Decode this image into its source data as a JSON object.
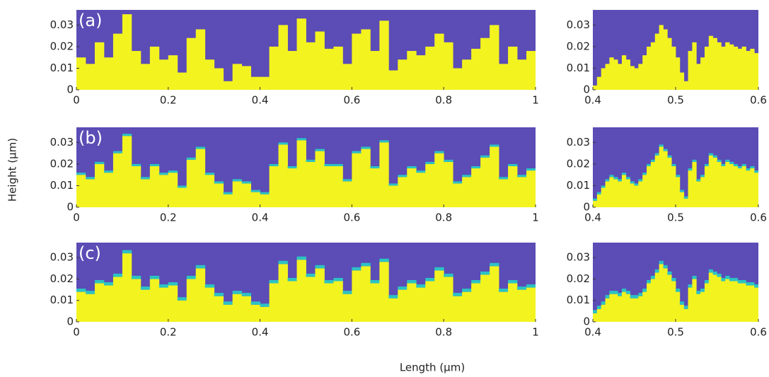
{
  "xlabel": "Length (μm)",
  "ylabel": "Height (μm)",
  "chart_data": [
    {
      "type": "step-area",
      "label": "(a)",
      "background": "#5b4cb6",
      "xlim": [
        0,
        1
      ],
      "ylim": [
        0,
        0.037
      ],
      "xticks": [
        0,
        0.2,
        0.4,
        0.6,
        0.8,
        1
      ],
      "yticks": [
        0,
        0.01,
        0.02,
        0.03
      ],
      "bin_width": 0.02,
      "x": [
        0,
        0.02,
        0.04,
        0.06,
        0.08,
        0.1,
        0.12,
        0.14,
        0.16,
        0.18,
        0.2,
        0.22,
        0.24,
        0.26,
        0.28,
        0.3,
        0.32,
        0.34,
        0.36,
        0.38,
        0.4,
        0.42,
        0.44,
        0.46,
        0.48,
        0.5,
        0.52,
        0.54,
        0.56,
        0.58,
        0.6,
        0.62,
        0.64,
        0.66,
        0.68,
        0.7,
        0.72,
        0.74,
        0.76,
        0.78,
        0.8,
        0.82,
        0.84,
        0.86,
        0.88,
        0.9,
        0.92,
        0.94,
        0.96,
        0.98
      ],
      "series": [
        {
          "color": "#f3f31f",
          "values": [
            0.015,
            0.012,
            0.022,
            0.015,
            0.026,
            0.035,
            0.018,
            0.012,
            0.02,
            0.014,
            0.016,
            0.008,
            0.024,
            0.028,
            0.014,
            0.01,
            0.004,
            0.012,
            0.011,
            0.006,
            0.006,
            0.02,
            0.03,
            0.018,
            0.033,
            0.022,
            0.027,
            0.019,
            0.02,
            0.012,
            0.026,
            0.028,
            0.018,
            0.032,
            0.009,
            0.014,
            0.018,
            0.016,
            0.02,
            0.026,
            0.022,
            0.01,
            0.014,
            0.019,
            0.024,
            0.03,
            0.012,
            0.02,
            0.014,
            0.018
          ]
        }
      ]
    },
    {
      "type": "step-area",
      "background": "#5b4cb6",
      "xlim": [
        0.4,
        0.6
      ],
      "ylim": [
        0,
        0.037
      ],
      "xticks": [
        0.4,
        0.5,
        0.6
      ],
      "yticks": [
        0,
        0.01,
        0.02,
        0.03
      ],
      "bin_width": 0.005,
      "x": [
        0.4,
        0.405,
        0.41,
        0.415,
        0.42,
        0.425,
        0.43,
        0.435,
        0.44,
        0.445,
        0.45,
        0.455,
        0.46,
        0.465,
        0.47,
        0.475,
        0.48,
        0.485,
        0.49,
        0.495,
        0.5,
        0.505,
        0.51,
        0.515,
        0.52,
        0.525,
        0.53,
        0.535,
        0.54,
        0.545,
        0.55,
        0.555,
        0.56,
        0.565,
        0.57,
        0.575,
        0.58,
        0.585,
        0.59,
        0.595
      ],
      "series": [
        {
          "color": "#f3f31f",
          "values": [
            0.002,
            0.006,
            0.01,
            0.012,
            0.015,
            0.014,
            0.012,
            0.016,
            0.014,
            0.011,
            0.01,
            0.012,
            0.016,
            0.02,
            0.022,
            0.026,
            0.03,
            0.028,
            0.024,
            0.02,
            0.015,
            0.008,
            0.004,
            0.018,
            0.022,
            0.012,
            0.015,
            0.02,
            0.025,
            0.024,
            0.022,
            0.02,
            0.022,
            0.021,
            0.02,
            0.019,
            0.02,
            0.018,
            0.019,
            0.017
          ]
        }
      ]
    },
    {
      "type": "step-area",
      "label": "(b)",
      "background": "#5b4cb6",
      "xlim": [
        0,
        1
      ],
      "ylim": [
        0,
        0.037
      ],
      "xticks": [
        0,
        0.2,
        0.4,
        0.6,
        0.8,
        1
      ],
      "yticks": [
        0,
        0.01,
        0.02,
        0.03
      ],
      "bin_width": 0.02,
      "x": [
        0,
        0.02,
        0.04,
        0.06,
        0.08,
        0.1,
        0.12,
        0.14,
        0.16,
        0.18,
        0.2,
        0.22,
        0.24,
        0.26,
        0.28,
        0.3,
        0.32,
        0.34,
        0.36,
        0.38,
        0.4,
        0.42,
        0.44,
        0.46,
        0.48,
        0.5,
        0.52,
        0.54,
        0.56,
        0.58,
        0.6,
        0.62,
        0.64,
        0.66,
        0.68,
        0.7,
        0.72,
        0.74,
        0.76,
        0.78,
        0.8,
        0.82,
        0.84,
        0.86,
        0.88,
        0.9,
        0.92,
        0.94,
        0.96,
        0.98
      ],
      "series": [
        {
          "color": "#f3f31f",
          "values": [
            0.015,
            0.013,
            0.02,
            0.016,
            0.025,
            0.033,
            0.019,
            0.013,
            0.019,
            0.015,
            0.016,
            0.009,
            0.022,
            0.027,
            0.015,
            0.011,
            0.006,
            0.012,
            0.011,
            0.007,
            0.006,
            0.019,
            0.029,
            0.018,
            0.031,
            0.021,
            0.026,
            0.019,
            0.019,
            0.012,
            0.025,
            0.027,
            0.018,
            0.03,
            0.01,
            0.014,
            0.018,
            0.016,
            0.02,
            0.025,
            0.021,
            0.011,
            0.014,
            0.018,
            0.023,
            0.028,
            0.013,
            0.019,
            0.014,
            0.017
          ]
        },
        {
          "color": "#2cc3c3",
          "values": [
            0.001,
            0.001,
            0.001,
            0.001,
            0.001,
            0.001,
            0.001,
            0.001,
            0.001,
            0.001,
            0.001,
            0.001,
            0.001,
            0.001,
            0.001,
            0.001,
            0.001,
            0.001,
            0.001,
            0.001,
            0.001,
            0.001,
            0.001,
            0.001,
            0.001,
            0.001,
            0.001,
            0.001,
            0.001,
            0.001,
            0.001,
            0.001,
            0.001,
            0.001,
            0.001,
            0.001,
            0.001,
            0.001,
            0.001,
            0.001,
            0.001,
            0.001,
            0.001,
            0.001,
            0.001,
            0.001,
            0.001,
            0.001,
            0.001,
            0.001
          ]
        }
      ]
    },
    {
      "type": "step-area",
      "background": "#5b4cb6",
      "xlim": [
        0.4,
        0.6
      ],
      "ylim": [
        0,
        0.037
      ],
      "xticks": [
        0.4,
        0.5,
        0.6
      ],
      "yticks": [
        0,
        0.01,
        0.02,
        0.03
      ],
      "bin_width": 0.005,
      "x": [
        0.4,
        0.405,
        0.41,
        0.415,
        0.42,
        0.425,
        0.43,
        0.435,
        0.44,
        0.445,
        0.45,
        0.455,
        0.46,
        0.465,
        0.47,
        0.475,
        0.48,
        0.485,
        0.49,
        0.495,
        0.5,
        0.505,
        0.51,
        0.515,
        0.52,
        0.525,
        0.53,
        0.535,
        0.54,
        0.545,
        0.55,
        0.555,
        0.56,
        0.565,
        0.57,
        0.575,
        0.58,
        0.585,
        0.59,
        0.595
      ],
      "series": [
        {
          "color": "#f3f31f",
          "values": [
            0.003,
            0.006,
            0.009,
            0.012,
            0.014,
            0.013,
            0.012,
            0.015,
            0.013,
            0.011,
            0.01,
            0.012,
            0.015,
            0.019,
            0.021,
            0.024,
            0.028,
            0.026,
            0.023,
            0.019,
            0.014,
            0.007,
            0.004,
            0.017,
            0.021,
            0.012,
            0.014,
            0.019,
            0.024,
            0.023,
            0.021,
            0.019,
            0.021,
            0.02,
            0.019,
            0.018,
            0.019,
            0.017,
            0.018,
            0.016
          ]
        },
        {
          "color": "#2cc3c3",
          "values": [
            0.001,
            0.001,
            0.001,
            0.001,
            0.001,
            0.001,
            0.001,
            0.001,
            0.001,
            0.001,
            0.001,
            0.001,
            0.001,
            0.001,
            0.001,
            0.001,
            0.001,
            0.001,
            0.001,
            0.001,
            0.001,
            0.001,
            0.001,
            0.001,
            0.001,
            0.001,
            0.001,
            0.001,
            0.001,
            0.001,
            0.001,
            0.001,
            0.001,
            0.001,
            0.001,
            0.001,
            0.001,
            0.001,
            0.001,
            0.001
          ]
        }
      ]
    },
    {
      "type": "step-area",
      "label": "(c)",
      "background": "#5b4cb6",
      "xlim": [
        0,
        1
      ],
      "ylim": [
        0,
        0.037
      ],
      "xticks": [
        0,
        0.2,
        0.4,
        0.6,
        0.8,
        1
      ],
      "yticks": [
        0,
        0.01,
        0.02,
        0.03
      ],
      "bin_width": 0.02,
      "x": [
        0,
        0.02,
        0.04,
        0.06,
        0.08,
        0.1,
        0.12,
        0.14,
        0.16,
        0.18,
        0.2,
        0.22,
        0.24,
        0.26,
        0.28,
        0.3,
        0.32,
        0.34,
        0.36,
        0.38,
        0.4,
        0.42,
        0.44,
        0.46,
        0.48,
        0.5,
        0.52,
        0.54,
        0.56,
        0.58,
        0.6,
        0.62,
        0.64,
        0.66,
        0.68,
        0.7,
        0.72,
        0.74,
        0.76,
        0.78,
        0.8,
        0.82,
        0.84,
        0.86,
        0.88,
        0.9,
        0.92,
        0.94,
        0.96,
        0.98
      ],
      "series": [
        {
          "color": "#f3f31f",
          "values": [
            0.014,
            0.013,
            0.018,
            0.017,
            0.021,
            0.032,
            0.02,
            0.015,
            0.02,
            0.016,
            0.017,
            0.01,
            0.02,
            0.025,
            0.016,
            0.012,
            0.008,
            0.013,
            0.012,
            0.008,
            0.007,
            0.018,
            0.027,
            0.019,
            0.029,
            0.021,
            0.025,
            0.018,
            0.019,
            0.013,
            0.024,
            0.026,
            0.018,
            0.028,
            0.011,
            0.015,
            0.018,
            0.016,
            0.019,
            0.024,
            0.021,
            0.012,
            0.014,
            0.018,
            0.022,
            0.026,
            0.014,
            0.018,
            0.015,
            0.016
          ]
        },
        {
          "color": "#2cc3c3",
          "values": [
            0.0015,
            0.0015,
            0.0015,
            0.0015,
            0.0015,
            0.0015,
            0.0015,
            0.0015,
            0.0015,
            0.0015,
            0.0015,
            0.0015,
            0.0015,
            0.0015,
            0.0015,
            0.0015,
            0.0015,
            0.0015,
            0.0015,
            0.0015,
            0.0015,
            0.0015,
            0.0015,
            0.0015,
            0.0015,
            0.0015,
            0.0015,
            0.0015,
            0.0015,
            0.0015,
            0.0015,
            0.0015,
            0.0015,
            0.0015,
            0.0015,
            0.0015,
            0.0015,
            0.0015,
            0.0015,
            0.0015,
            0.0015,
            0.0015,
            0.0015,
            0.0015,
            0.0015,
            0.0015,
            0.0015,
            0.0015,
            0.0015,
            0.0015
          ]
        }
      ]
    },
    {
      "type": "step-area",
      "background": "#5b4cb6",
      "xlim": [
        0.4,
        0.6
      ],
      "ylim": [
        0,
        0.037
      ],
      "xticks": [
        0.4,
        0.5,
        0.6
      ],
      "yticks": [
        0,
        0.01,
        0.02,
        0.03
      ],
      "bin_width": 0.005,
      "x": [
        0.4,
        0.405,
        0.41,
        0.415,
        0.42,
        0.425,
        0.43,
        0.435,
        0.44,
        0.445,
        0.45,
        0.455,
        0.46,
        0.465,
        0.47,
        0.475,
        0.48,
        0.485,
        0.49,
        0.495,
        0.5,
        0.505,
        0.51,
        0.515,
        0.52,
        0.525,
        0.53,
        0.535,
        0.54,
        0.545,
        0.55,
        0.555,
        0.56,
        0.565,
        0.57,
        0.575,
        0.58,
        0.585,
        0.59,
        0.595
      ],
      "series": [
        {
          "color": "#f3f31f",
          "values": [
            0.004,
            0.006,
            0.008,
            0.011,
            0.013,
            0.013,
            0.012,
            0.014,
            0.013,
            0.011,
            0.011,
            0.012,
            0.014,
            0.018,
            0.02,
            0.023,
            0.027,
            0.025,
            0.022,
            0.019,
            0.014,
            0.008,
            0.006,
            0.016,
            0.02,
            0.013,
            0.014,
            0.018,
            0.023,
            0.022,
            0.021,
            0.019,
            0.02,
            0.019,
            0.019,
            0.018,
            0.018,
            0.017,
            0.017,
            0.016
          ]
        },
        {
          "color": "#2cc3c3",
          "values": [
            0.0015,
            0.0015,
            0.0015,
            0.0015,
            0.0015,
            0.0015,
            0.0015,
            0.0015,
            0.0015,
            0.0015,
            0.0015,
            0.0015,
            0.0015,
            0.0015,
            0.0015,
            0.0015,
            0.0015,
            0.0015,
            0.0015,
            0.0015,
            0.0015,
            0.0015,
            0.0015,
            0.0015,
            0.0015,
            0.0015,
            0.0015,
            0.0015,
            0.0015,
            0.0015,
            0.0015,
            0.0015,
            0.0015,
            0.0015,
            0.0015,
            0.0015,
            0.0015,
            0.0015,
            0.0015,
            0.0015
          ]
        }
      ]
    }
  ]
}
